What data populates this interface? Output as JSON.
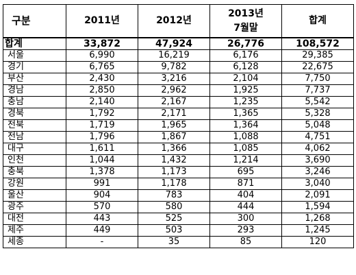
{
  "table": {
    "headers": [
      "구분",
      "2011년",
      "2012년",
      "2013년",
      "7월말",
      "합계"
    ],
    "total_row": {
      "label": "합계",
      "y2011": "33,872",
      "y2012": "47,924",
      "y2013": "26,776",
      "sum": "108,572"
    },
    "rows": [
      {
        "label": "서울",
        "y2011": "6,990",
        "y2012": "16,219",
        "y2013": "6,176",
        "sum": "29,385"
      },
      {
        "label": "경기",
        "y2011": "6,765",
        "y2012": "9,782",
        "y2013": "6,128",
        "sum": "22,675"
      },
      {
        "label": "부산",
        "y2011": "2,430",
        "y2012": "3,216",
        "y2013": "2,104",
        "sum": "7,750"
      },
      {
        "label": "경남",
        "y2011": "2,850",
        "y2012": "2,962",
        "y2013": "1,925",
        "sum": "7,737"
      },
      {
        "label": "충남",
        "y2011": "2,140",
        "y2012": "2,167",
        "y2013": "1,235",
        "sum": "5,542"
      },
      {
        "label": "경북",
        "y2011": "1,792",
        "y2012": "2,171",
        "y2013": "1,365",
        "sum": "5,328"
      },
      {
        "label": "전북",
        "y2011": "1,719",
        "y2012": "1,965",
        "y2013": "1,364",
        "sum": "5,048"
      },
      {
        "label": "전남",
        "y2011": "1,796",
        "y2012": "1,867",
        "y2013": "1,088",
        "sum": "4,751"
      },
      {
        "label": "대구",
        "y2011": "1,611",
        "y2012": "1,366",
        "y2013": "1,085",
        "sum": "4,062"
      },
      {
        "label": "인천",
        "y2011": "1,044",
        "y2012": "1,432",
        "y2013": "1,214",
        "sum": "3,690"
      },
      {
        "label": "충북",
        "y2011": "1,378",
        "y2012": "1,173",
        "y2013": "695",
        "sum": "3,246"
      },
      {
        "label": "강원",
        "y2011": "991",
        "y2012": "1,178",
        "y2013": "871",
        "sum": "3,040"
      },
      {
        "label": "울산",
        "y2011": "904",
        "y2012": "783",
        "y2013": "404",
        "sum": "2,091"
      },
      {
        "label": "광주",
        "y2011": "570",
        "y2012": "580",
        "y2013": "444",
        "sum": "1,594"
      },
      {
        "label": "대전",
        "y2011": "443",
        "y2012": "525",
        "y2013": "300",
        "sum": "1,268"
      },
      {
        "label": "제주",
        "y2011": "449",
        "y2012": "503",
        "y2013": "293",
        "sum": "1,245"
      },
      {
        "label": "세종",
        "y2011": "-",
        "y2012": "35",
        "y2013": "85",
        "sum": "120"
      }
    ]
  }
}
